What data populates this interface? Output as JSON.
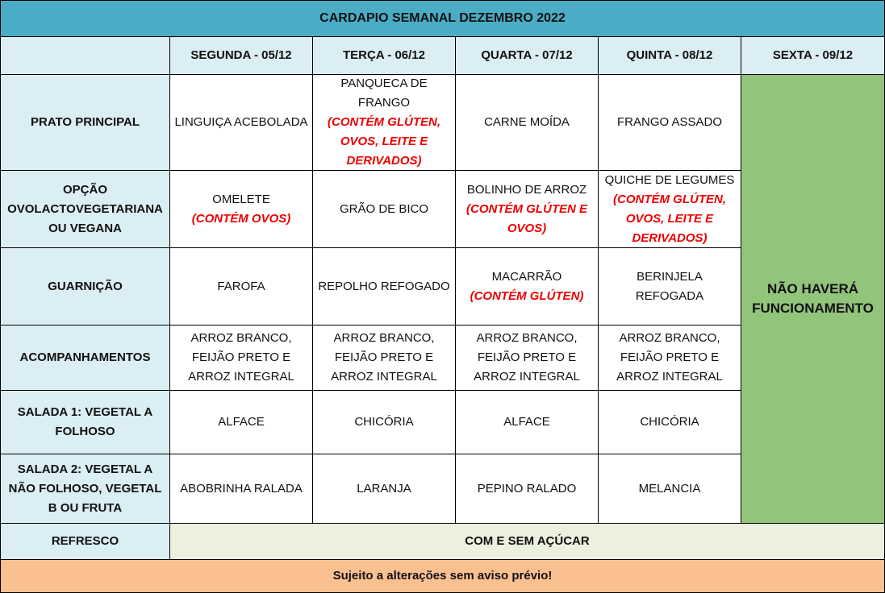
{
  "title": "CARDAPIO SEMANAL DEZEMBRO 2022",
  "days": [
    "",
    "SEGUNDA - 05/12",
    "TERÇA - 06/12",
    "QUARTA - 07/12",
    "QUINTA - 08/12",
    "SEXTA - 09/12"
  ],
  "rows": [
    {
      "label": "PRATO PRINCIPAL",
      "cells": [
        {
          "text": "LINGUIÇA ACEBOLADA",
          "note": ""
        },
        {
          "text": "PANQUECA DE FRANGO",
          "note": "(CONTÉM GLÚTEN, OVOS, LEITE E DERIVADOS)"
        },
        {
          "text": "CARNE MOÍDA",
          "note": ""
        },
        {
          "text": "FRANGO ASSADO",
          "note": ""
        }
      ]
    },
    {
      "label": "OPÇÃO OVOLACTOVEGETARIANA OU VEGANA",
      "cells": [
        {
          "text": "OMELETE",
          "note": "(CONTÉM OVOS)"
        },
        {
          "text": "GRÃO DE BICO",
          "note": ""
        },
        {
          "text": "BOLINHO DE ARROZ",
          "note": "(CONTÉM GLÚTEN E OVOS)"
        },
        {
          "text": "QUICHE DE LEGUMES",
          "note": "(CONTÉM GLÚTEN, OVOS, LEITE E DERIVADOS)"
        }
      ]
    },
    {
      "label": "GUARNIÇÃO",
      "cells": [
        {
          "text": "FAROFA",
          "note": ""
        },
        {
          "text": "REPOLHO REFOGADO",
          "note": ""
        },
        {
          "text": "MACARRÃO",
          "note": "(CONTÉM GLÚTEN)"
        },
        {
          "text": "BERINJELA REFOGADA",
          "note": ""
        }
      ]
    },
    {
      "label": "ACOMPANHAMENTOS",
      "cells": [
        {
          "text": "ARROZ BRANCO, FEIJÃO PRETO E ARROZ INTEGRAL",
          "note": ""
        },
        {
          "text": "ARROZ BRANCO, FEIJÃO PRETO E ARROZ INTEGRAL",
          "note": ""
        },
        {
          "text": "ARROZ BRANCO, FEIJÃO PRETO E ARROZ INTEGRAL",
          "note": ""
        },
        {
          "text": "ARROZ BRANCO, FEIJÃO PRETO E ARROZ INTEGRAL",
          "note": ""
        }
      ]
    },
    {
      "label": "SALADA 1: VEGETAL A FOLHOSO",
      "cells": [
        {
          "text": "ALFACE",
          "note": ""
        },
        {
          "text": "CHICÓRIA",
          "note": ""
        },
        {
          "text": "ALFACE",
          "note": ""
        },
        {
          "text": "CHICÓRIA",
          "note": ""
        }
      ]
    },
    {
      "label": "SALADA 2: VEGETAL A NÃO FOLHOSO,   VEGETAL B OU FRUTA",
      "cells": [
        {
          "text": "ABOBRINHA RALADA",
          "note": ""
        },
        {
          "text": "LARANJA",
          "note": ""
        },
        {
          "text": "PEPINO RALADO",
          "note": ""
        },
        {
          "text": "MELANCIA",
          "note": ""
        }
      ]
    }
  ],
  "friday_closed": "NÃO HAVERÁ FUNCIONAMENTO",
  "refresco": {
    "label": "REFRESCO",
    "value": "COM E SEM AÇÚCAR"
  },
  "footer": "Sujeito a alterações sem aviso prévio!",
  "colors": {
    "title": "#4bacc6",
    "header": "#daeef3",
    "closed": "#92c47c",
    "refresco": "#ebf1de",
    "footer": "#fac090",
    "allergen": "#e00000"
  }
}
